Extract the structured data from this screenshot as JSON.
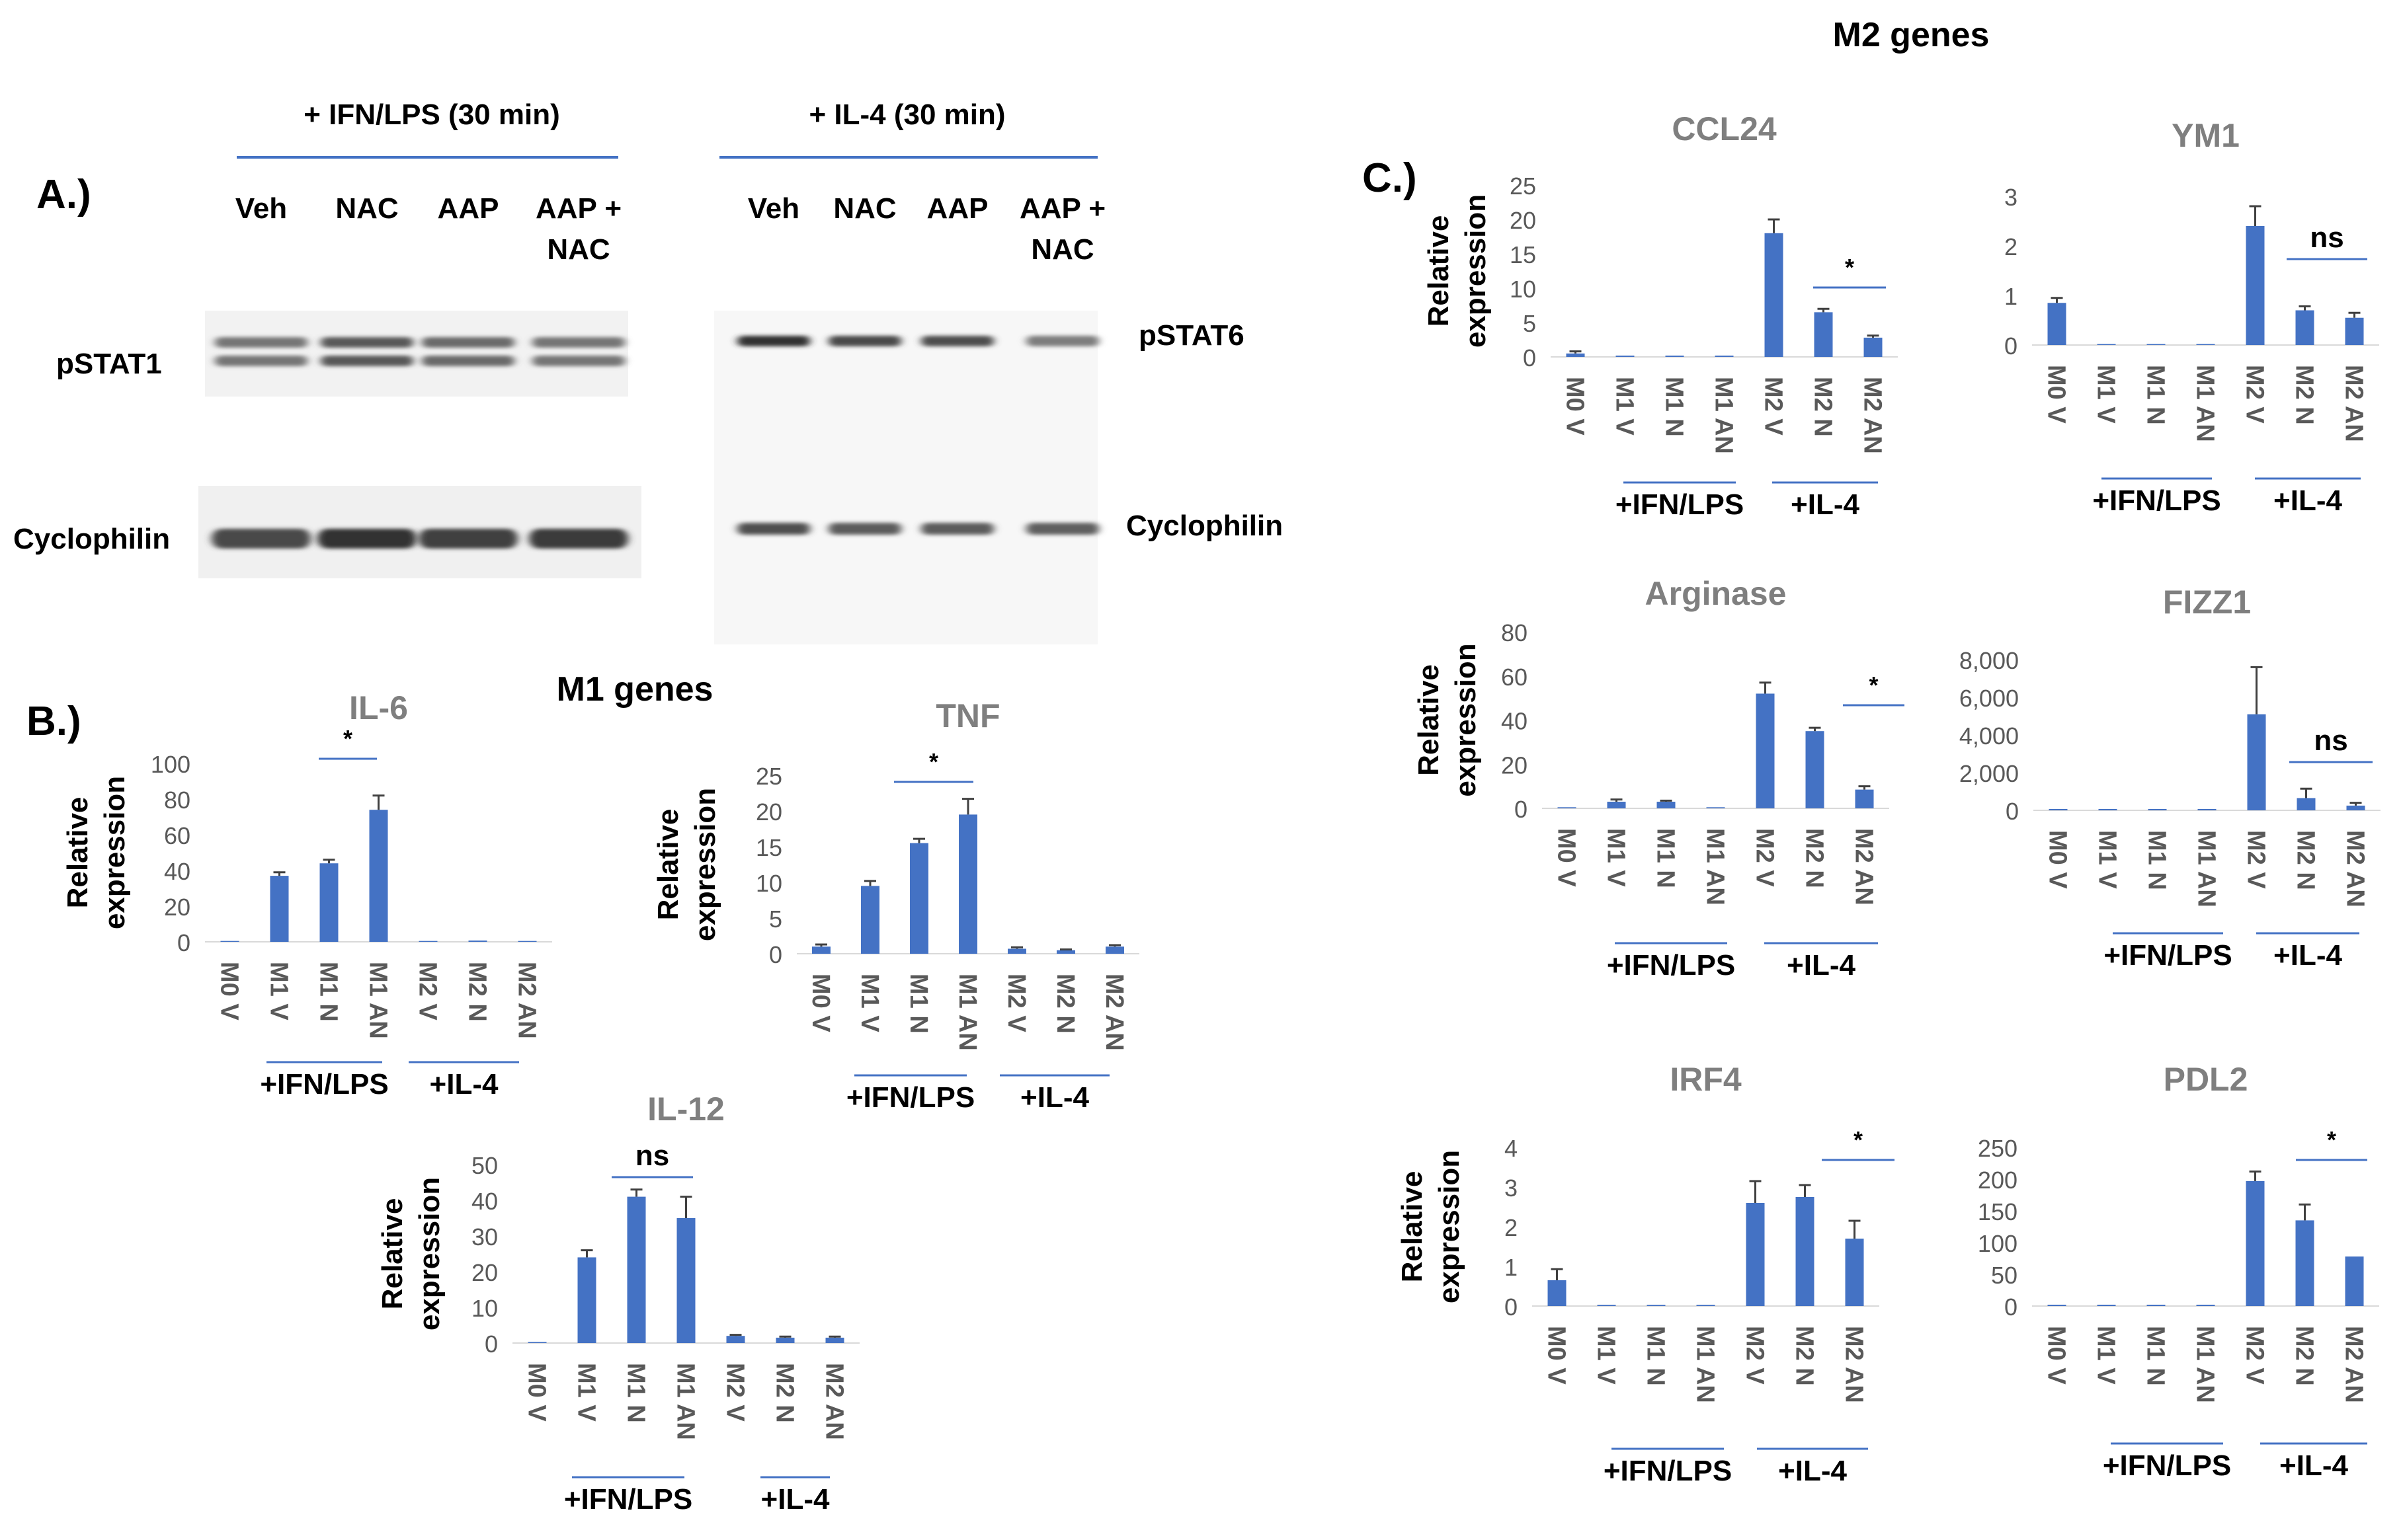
{
  "panel_labels": {
    "a": "A.)",
    "b": "B.)",
    "c": "C.)"
  },
  "section_titles": {
    "m1": "M1 genes",
    "m2": "M2 genes"
  },
  "blot": {
    "left_title": "+ IFN/LPS (30 min)",
    "right_title": "+ IL-4 (30 min)",
    "lanes_left": [
      "Veh",
      "NAC",
      "AAP",
      "AAP +\nNAC"
    ],
    "lanes_right": [
      "Veh",
      "NAC",
      "AAP",
      "AAP +\nNAC"
    ],
    "left_top_label": "pSTAT1",
    "left_bottom_label": "Cyclophilin",
    "right_top_label": "pSTAT6",
    "right_bottom_label": "Cyclophilin",
    "pstat1_intensity": [
      0.55,
      0.75,
      0.62,
      0.55
    ],
    "pstat6_intensity": [
      1.0,
      0.85,
      0.82,
      0.5
    ],
    "cyclophilin_left_intensity": [
      0.85,
      1.0,
      0.9,
      0.95
    ],
    "cyclophilin_right_intensity": [
      0.8,
      0.72,
      0.72,
      0.7
    ]
  },
  "colors": {
    "bar": "#4472c4",
    "axis_text": "#595959",
    "title_text": "#7f7f7f",
    "bracket": "#4472c4"
  },
  "chart_data": [
    {
      "id": "il6",
      "type": "bar",
      "title": "IL-6",
      "ylabel": "Relative\nexpression",
      "categories": [
        "M0 V",
        "M1 V",
        "M1 N",
        "M1 AN",
        "M2 V",
        "M2 N",
        "M2 AN"
      ],
      "values": [
        0.5,
        37,
        44,
        74,
        0.5,
        0,
        0.5
      ],
      "errors": [
        0,
        2,
        2,
        8,
        0,
        0,
        0
      ],
      "ylim": [
        0,
        100
      ],
      "yticks": [
        "0",
        "20",
        "40",
        "60",
        "80",
        "100"
      ],
      "groups": [
        "+IFN/LPS",
        "+IL-4"
      ],
      "sig": "*"
    },
    {
      "id": "tnf",
      "type": "bar",
      "title": "TNF",
      "ylabel": "Relative\nexpression",
      "categories": [
        "M0 V",
        "M1 V",
        "M1 N",
        "M1 AN",
        "M2 V",
        "M2 N",
        "M2 AN"
      ],
      "values": [
        1,
        9.5,
        15.5,
        19.5,
        0.7,
        0.5,
        1
      ],
      "errors": [
        0.3,
        0.7,
        0.6,
        2.2,
        0.2,
        0.1,
        0.2
      ],
      "ylim": [
        0,
        25
      ],
      "yticks": [
        "0",
        "5",
        "10",
        "15",
        "20",
        "25"
      ],
      "groups": [
        "+IFN/LPS",
        "+IL-4"
      ],
      "sig": "*"
    },
    {
      "id": "il12",
      "type": "bar",
      "title": "IL-12",
      "ylabel": "Relative\nexpression",
      "categories": [
        "M0 V",
        "M1 V",
        "M1 N",
        "M1 AN",
        "M2 V",
        "M2 N",
        "M2 AN"
      ],
      "values": [
        0.3,
        24,
        41,
        35,
        2,
        1.5,
        1.5
      ],
      "errors": [
        0,
        2,
        2,
        6,
        0.3,
        0.3,
        0.3
      ],
      "ylim": [
        0,
        50
      ],
      "yticks": [
        "0",
        "10",
        "20",
        "30",
        "40",
        "50"
      ],
      "groups": [
        "+IFN/LPS",
        "+IL-4"
      ],
      "sig": "ns"
    },
    {
      "id": "ccl24",
      "type": "bar",
      "title": "CCL24",
      "ylabel": "Relative\nexpression",
      "categories": [
        "M0 V",
        "M1 V",
        "M1 N",
        "M1 AN",
        "M2 V",
        "M2 N",
        "M2 AN"
      ],
      "values": [
        0.5,
        0,
        0,
        0,
        18,
        6.5,
        2.8
      ],
      "errors": [
        0.3,
        0,
        0,
        0,
        2,
        0.5,
        0.3
      ],
      "ylim": [
        0,
        25
      ],
      "yticks": [
        "0",
        "5",
        "10",
        "15",
        "20",
        "25"
      ],
      "groups": [
        "+IFN/LPS",
        "+IL-4"
      ],
      "sig": "*"
    },
    {
      "id": "ym1",
      "type": "bar",
      "title": "YM1",
      "ylabel": "",
      "categories": [
        "M0 V",
        "M1 V",
        "M1 N",
        "M1 AN",
        "M2 V",
        "M2 N",
        "M2 AN"
      ],
      "values": [
        0.85,
        0.02,
        0.02,
        0.02,
        2.4,
        0.7,
        0.55
      ],
      "errors": [
        0.1,
        0,
        0,
        0,
        0.4,
        0.08,
        0.1
      ],
      "ylim": [
        0,
        3
      ],
      "yticks": [
        "0",
        "1",
        "2",
        "3"
      ],
      "groups": [
        "+IFN/LPS",
        "+IL-4"
      ],
      "sig": "ns"
    },
    {
      "id": "arginase",
      "type": "bar",
      "title": "Arginase",
      "ylabel": "Relative\nexpression",
      "categories": [
        "M0 V",
        "M1 V",
        "M1 N",
        "M1 AN",
        "M2 V",
        "M2 N",
        "M2 AN"
      ],
      "values": [
        0.5,
        3,
        3,
        0.5,
        52,
        35,
        8.5
      ],
      "errors": [
        0,
        1,
        0.5,
        0,
        5,
        1.5,
        1.5
      ],
      "ylim": [
        0,
        80
      ],
      "yticks": [
        "0",
        "20",
        "40",
        "60",
        "80"
      ],
      "groups": [
        "+IFN/LPS",
        "+IL-4"
      ],
      "sig": "*"
    },
    {
      "id": "fizz1",
      "type": "bar",
      "title": "FIZZ1",
      "ylabel": "",
      "categories": [
        "M0 V",
        "M1 V",
        "M1 N",
        "M1 AN",
        "M2 V",
        "M2 N",
        "M2 AN"
      ],
      "values": [
        0,
        0,
        0,
        0,
        5100,
        650,
        250
      ],
      "errors": [
        0,
        0,
        0,
        0,
        2500,
        500,
        150
      ],
      "ylim": [
        0,
        8000
      ],
      "yticks": [
        "0",
        "2,000",
        "4,000",
        "6,000",
        "8,000"
      ],
      "groups": [
        "+IFN/LPS",
        "+IL-4"
      ],
      "sig": "ns"
    },
    {
      "id": "irf4",
      "type": "bar",
      "title": "IRF4",
      "ylabel": "Relative\nexpression",
      "categories": [
        "M0 V",
        "M1 V",
        "M1 N",
        "M1 AN",
        "M2 V",
        "M2 N",
        "M2 AN"
      ],
      "values": [
        0.65,
        0.03,
        0.03,
        0.03,
        2.6,
        2.75,
        1.7
      ],
      "errors": [
        0.28,
        0,
        0,
        0,
        0.55,
        0.3,
        0.45
      ],
      "ylim": [
        0,
        4
      ],
      "yticks": [
        "0",
        "1",
        "2",
        "3",
        "4"
      ],
      "groups": [
        "+IFN/LPS",
        "+IL-4"
      ],
      "sig": "*"
    },
    {
      "id": "pdl2",
      "type": "bar",
      "title": "PDL2",
      "ylabel": "",
      "categories": [
        "M0 V",
        "M1 V",
        "M1 N",
        "M1 AN",
        "M2 V",
        "M2 N",
        "M2 AN"
      ],
      "values": [
        0,
        0,
        0,
        0,
        197,
        135,
        78
      ],
      "errors": [
        0,
        0,
        0,
        0,
        15,
        25,
        0
      ],
      "ylim": [
        0,
        250
      ],
      "yticks": [
        "0",
        "50",
        "100",
        "150",
        "200",
        "250"
      ],
      "groups": [
        "+IFN/LPS",
        "+IL-4"
      ],
      "sig": "*"
    }
  ]
}
